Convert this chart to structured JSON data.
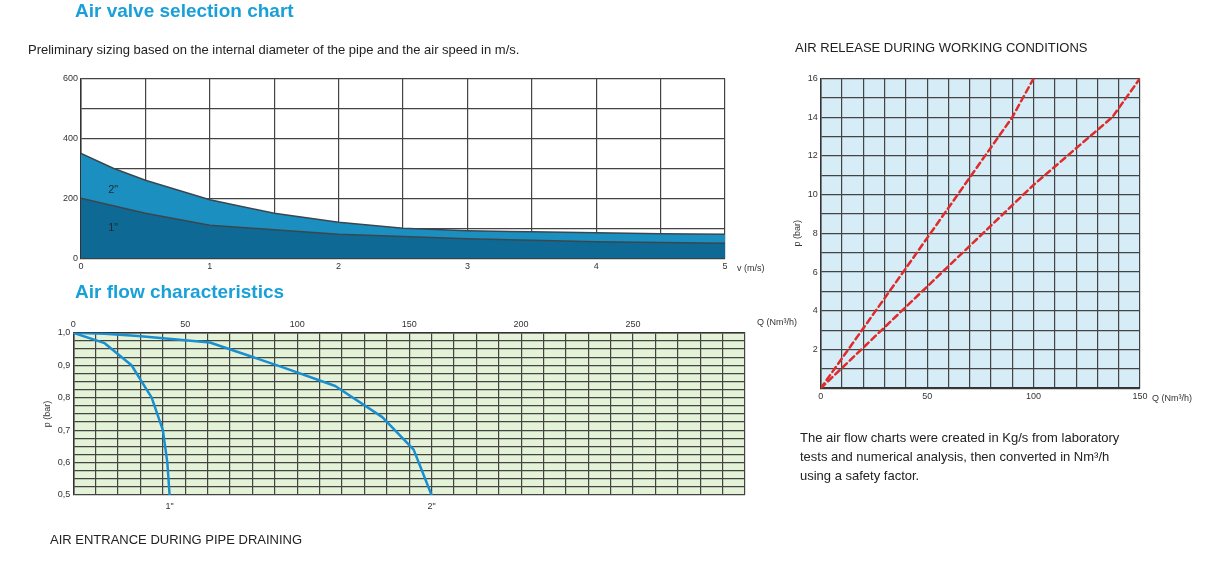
{
  "chart_data": [
    {
      "type": "area",
      "title": "Air valve selection chart",
      "subtitle": "Preliminary sizing based on the internal diameter of the pipe and the air speed in m/s.",
      "xlabel": "v (m/s)",
      "x": [
        0,
        0.25,
        0.5,
        1,
        1.5,
        2,
        2.5,
        3,
        3.5,
        4,
        4.5,
        5
      ],
      "series": [
        {
          "name": "2\"",
          "color": "#1b8fc0",
          "values": [
            350,
            300,
            260,
            195,
            150,
            120,
            100,
            92,
            88,
            85,
            82,
            80
          ]
        },
        {
          "name": "1\"",
          "color": "#0e6a94",
          "values": [
            200,
            175,
            150,
            110,
            95,
            80,
            72,
            65,
            60,
            55,
            52,
            50
          ]
        }
      ],
      "xlim": [
        0,
        5
      ],
      "xticks": [
        0,
        {
          "value": 0.5,
          "label": null
        },
        1,
        {
          "value": 1.5,
          "label": null
        },
        2,
        {
          "value": 2.5,
          "label": null
        },
        3,
        {
          "value": 3.5,
          "label": null
        },
        4,
        {
          "value": 4.5,
          "label": null
        },
        5
      ],
      "ylim": [
        0,
        600
      ],
      "yticks": [
        0,
        {
          "value": 100,
          "label": null
        },
        200,
        {
          "value": 300,
          "label": null
        },
        400,
        {
          "value": 500,
          "label": null
        },
        600
      ],
      "grid": true,
      "legend": false
    },
    {
      "type": "line",
      "title": "Air flow characteristics",
      "xlabel": "Q (Nm³/h)",
      "ylabel": "p (bar)",
      "annotations": [
        "AIR ENTRANCE DURING PIPE DRAINING"
      ],
      "series": [
        {
          "name": "1\"",
          "color": "#1a8fd0",
          "x": [
            0,
            14,
            26,
            35,
            40,
            42,
            43
          ],
          "values": [
            1.0,
            0.968,
            0.9,
            0.8,
            0.7,
            0.6,
            0.5
          ]
        },
        {
          "name": "2\"",
          "color": "#1a8fd0",
          "x": [
            0,
            14,
            29,
            61,
            93,
            117,
            138,
            152,
            160
          ],
          "values": [
            1.0,
            0.997,
            0.99,
            0.97,
            0.895,
            0.836,
            0.74,
            0.64,
            0.5
          ]
        }
      ],
      "xlim": [
        0,
        300
      ],
      "xticks": [
        0,
        {
          "value": 10,
          "label": null
        },
        {
          "value": 20,
          "label": null
        },
        {
          "value": 30,
          "label": null
        },
        {
          "value": 40,
          "label": null
        },
        50,
        {
          "value": 60,
          "label": null
        },
        {
          "value": 70,
          "label": null
        },
        {
          "value": 80,
          "label": null
        },
        {
          "value": 90,
          "label": null
        },
        100,
        {
          "value": 110,
          "label": null
        },
        {
          "value": 120,
          "label": null
        },
        {
          "value": 130,
          "label": null
        },
        {
          "value": 140,
          "label": null
        },
        150,
        {
          "value": 160,
          "label": null
        },
        {
          "value": 170,
          "label": null
        },
        {
          "value": 180,
          "label": null
        },
        {
          "value": 190,
          "label": null
        },
        200,
        {
          "value": 210,
          "label": null
        },
        {
          "value": 220,
          "label": null
        },
        {
          "value": 230,
          "label": null
        },
        {
          "value": 240,
          "label": null
        },
        250,
        {
          "value": 260,
          "label": null
        },
        {
          "value": 270,
          "label": null
        },
        {
          "value": 280,
          "label": null
        },
        {
          "value": 290,
          "label": null
        },
        {
          "value": 300,
          "label": null
        }
      ],
      "ylim": [
        0.5,
        1.0
      ],
      "yticks": [
        {
          "value": 0.5,
          "label": "0,5"
        },
        {
          "value": 0.525,
          "label": null
        },
        {
          "value": 0.55,
          "label": null
        },
        {
          "value": 0.575,
          "label": null
        },
        {
          "value": 0.6,
          "label": "0,6"
        },
        {
          "value": 0.625,
          "label": null
        },
        {
          "value": 0.65,
          "label": null
        },
        {
          "value": 0.675,
          "label": null
        },
        {
          "value": 0.7,
          "label": "0,7"
        },
        {
          "value": 0.725,
          "label": null
        },
        {
          "value": 0.75,
          "label": null
        },
        {
          "value": 0.775,
          "label": null
        },
        {
          "value": 0.8,
          "label": "0,8"
        },
        {
          "value": 0.825,
          "label": null
        },
        {
          "value": 0.85,
          "label": null
        },
        {
          "value": 0.875,
          "label": null
        },
        {
          "value": 0.9,
          "label": "0,9"
        },
        {
          "value": 0.925,
          "label": null
        },
        {
          "value": 0.95,
          "label": null
        },
        {
          "value": 0.975,
          "label": null
        },
        {
          "value": 1.0,
          "label": "1,0"
        }
      ],
      "grid": true,
      "legend": false
    },
    {
      "type": "line",
      "title": "AIR RELEASE DURING WORKING CONDITIONS",
      "xlabel": "Q (Nm³/h)",
      "ylabel": "p (bar)",
      "annotations": [
        "The air flow charts were created in Kg/s from laboratory tests and numerical analysis, then converted in Nm³/h using a safety factor."
      ],
      "series": [
        {
          "color": "#e02b2b",
          "x": [
            0,
            40,
            90,
            100
          ],
          "values": [
            0,
            6.2,
            14,
            16
          ]
        },
        {
          "color": "#e02b2b",
          "x": [
            0,
            60,
            100,
            137,
            150
          ],
          "values": [
            0,
            6.3,
            10.5,
            14,
            16
          ]
        }
      ],
      "xlim": [
        0,
        150
      ],
      "xticks": [
        0,
        {
          "value": 10,
          "label": null
        },
        {
          "value": 20,
          "label": null
        },
        {
          "value": 30,
          "label": null
        },
        {
          "value": 40,
          "label": null
        },
        50,
        {
          "value": 60,
          "label": null
        },
        {
          "value": 70,
          "label": null
        },
        {
          "value": 80,
          "label": null
        },
        {
          "value": 90,
          "label": null
        },
        100,
        {
          "value": 110,
          "label": null
        },
        {
          "value": 120,
          "label": null
        },
        {
          "value": 130,
          "label": null
        },
        {
          "value": 140,
          "label": null
        },
        150
      ],
      "ylim": [
        0,
        16
      ],
      "yticks": [
        {
          "value": 0,
          "label": null
        },
        {
          "value": 1,
          "label": null
        },
        2,
        {
          "value": 3,
          "label": null
        },
        4,
        {
          "value": 5,
          "label": null
        },
        6,
        {
          "value": 7,
          "label": null
        },
        8,
        {
          "value": 9,
          "label": null
        },
        10,
        {
          "value": 11,
          "label": null
        },
        12,
        {
          "value": 13,
          "label": null
        },
        14,
        {
          "value": 15,
          "label": null
        },
        16
      ],
      "grid": true,
      "legend": false,
      "line_style": "dashed"
    }
  ]
}
